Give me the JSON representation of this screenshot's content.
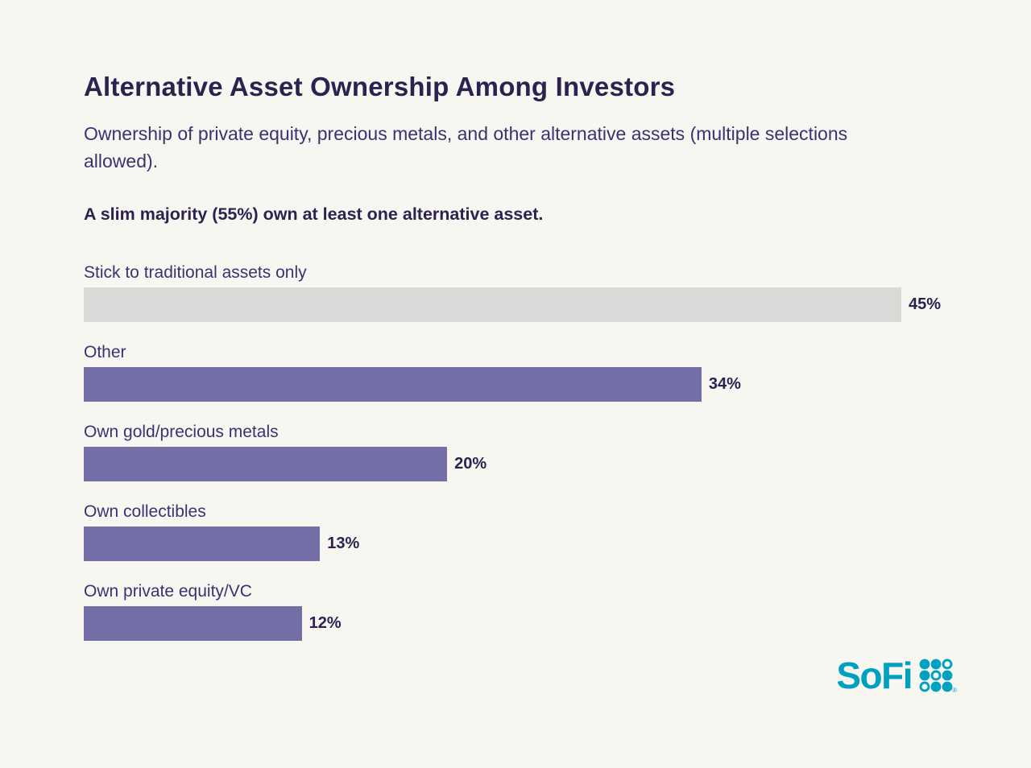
{
  "header": {
    "title": "Alternative Asset Ownership Among Investors",
    "subtitle": "Ownership of private equity, precious metals, and other alternative assets (multiple selections allowed).",
    "callout": "A slim majority (55%) own at least one alternative asset."
  },
  "chart_data": {
    "type": "bar",
    "orientation": "horizontal",
    "categories": [
      "Stick to traditional assets only",
      "Other",
      "Own gold/precious metals",
      "Own collectibles",
      "Own private equity/VC"
    ],
    "values": [
      45,
      34,
      20,
      13,
      12
    ],
    "value_labels": [
      "45%",
      "34%",
      "20%",
      "13%",
      "12%"
    ],
    "bar_colors": [
      "#dad9d7",
      "#756fa7",
      "#756fa7",
      "#756fa7",
      "#756fa7"
    ],
    "xlim": [
      0,
      45
    ],
    "grid": false,
    "legend": false,
    "value_label_position": "right-of-bar"
  },
  "branding": {
    "logo_text": "SoFi",
    "logo_icon": "sofi-dots-grid-icon",
    "registered_mark": "®",
    "dot_pattern": [
      [
        "filled",
        "filled",
        "outline"
      ],
      [
        "filled",
        "outline",
        "filled"
      ],
      [
        "outline",
        "filled",
        "filled"
      ]
    ]
  },
  "colors": {
    "background": "#f8f6f1",
    "title_ink": "#2b2250",
    "body_text": "#3b3173",
    "bar_purple": "#756fa7",
    "bar_gray": "#dad9d7",
    "logo_teal": "#00a0c1"
  }
}
